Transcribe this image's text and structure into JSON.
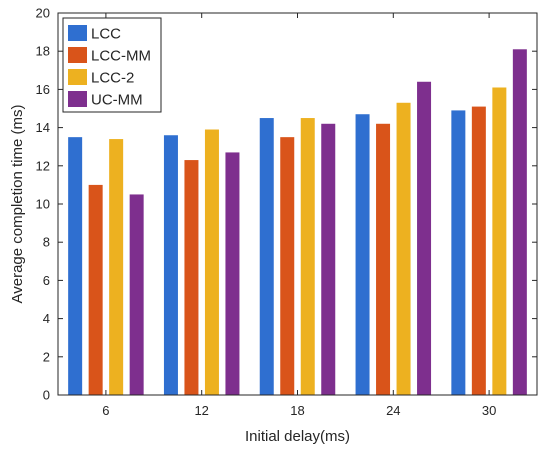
{
  "chart_data": {
    "type": "bar",
    "title": "",
    "xlabel": "Initial delay(ms)",
    "ylabel": "Average completion time (ms)",
    "categories": [
      "6",
      "12",
      "18",
      "24",
      "30"
    ],
    "ylim": [
      0,
      20
    ],
    "yticks": [
      "0",
      "2",
      "4",
      "6",
      "8",
      "10",
      "12",
      "14",
      "16",
      "18",
      "20"
    ],
    "grid": false,
    "legend_position": "top-left",
    "series": [
      {
        "name": "LCC",
        "color": "#2f6fd0",
        "values": [
          13.5,
          13.6,
          14.5,
          14.7,
          14.9
        ]
      },
      {
        "name": "LCC-MM",
        "color": "#d9541a",
        "values": [
          11.0,
          12.3,
          13.5,
          14.2,
          15.1
        ]
      },
      {
        "name": "LCC-2",
        "color": "#edb120",
        "values": [
          13.4,
          13.9,
          14.5,
          15.3,
          16.1
        ]
      },
      {
        "name": "UC-MM",
        "color": "#7e2f8e",
        "values": [
          10.5,
          12.7,
          14.2,
          16.4,
          18.1
        ]
      }
    ]
  }
}
